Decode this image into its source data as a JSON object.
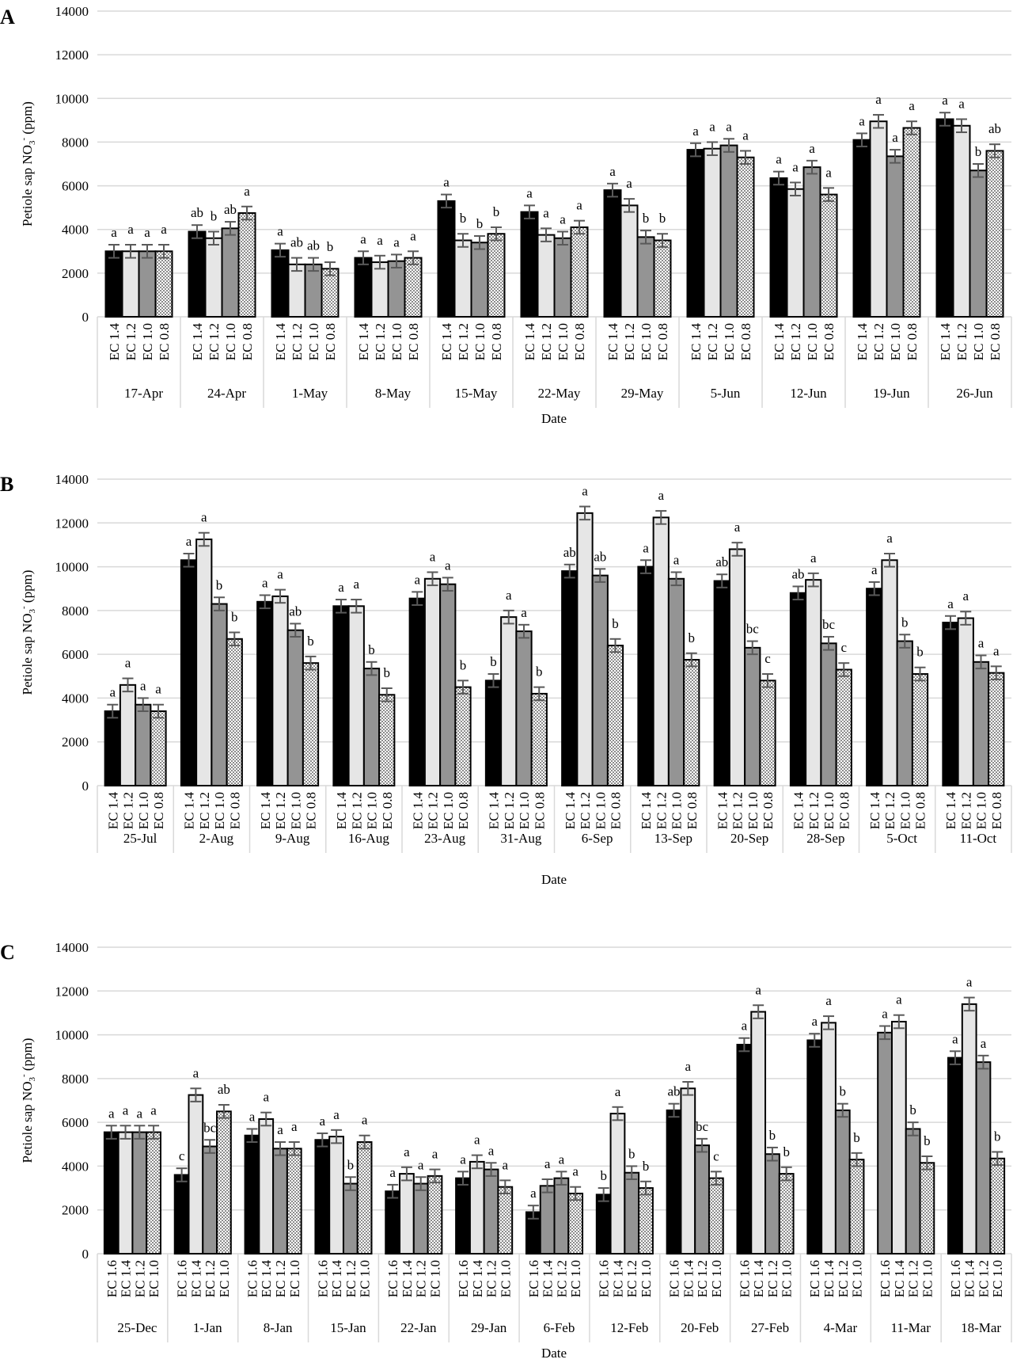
{
  "colors": {
    "EC_high": "#000000",
    "EC_mid_high": "#e6e6e6",
    "EC_mid_low": "#949494",
    "EC_low": "#ffffff",
    "hatch_dot": "#8c8c8c",
    "grid": "#d9d9d9",
    "error_bar": "#595959"
  },
  "y_axis_title": {
    "main": "Petiole sap NO",
    "sub": "3",
    "sup": "-",
    "unit": " (ppm)"
  },
  "chart_data": [
    {
      "panel": "A",
      "type": "bar",
      "xlabel": "Date",
      "ylim": [
        0,
        14000
      ],
      "yticks": [
        0,
        2000,
        4000,
        6000,
        8000,
        10000,
        12000,
        14000
      ],
      "grid": true,
      "error_approx": 300,
      "treatments": [
        "EC 1.4",
        "EC 1.2",
        "EC 1.0",
        "EC 0.8"
      ],
      "groups": [
        {
          "date": "17-Apr",
          "values": [
            3000,
            3000,
            3000,
            3000
          ],
          "letters": [
            "a",
            "a",
            "a",
            "a"
          ]
        },
        {
          "date": "24-Apr",
          "values": [
            3900,
            3600,
            4050,
            4750
          ],
          "letters": [
            "ab",
            "b",
            "ab",
            "a"
          ]
        },
        {
          "date": "1-May",
          "values": [
            3050,
            2400,
            2400,
            2200
          ],
          "letters": [
            "a",
            "ab",
            "ab",
            "b"
          ]
        },
        {
          "date": "8-May",
          "values": [
            2700,
            2500,
            2550,
            2700
          ],
          "letters": [
            "a",
            "a",
            "a",
            "a"
          ]
        },
        {
          "date": "15-May",
          "values": [
            5300,
            3500,
            3400,
            3800
          ],
          "letters": [
            "a",
            "b",
            "b",
            "b"
          ]
        },
        {
          "date": "22-May",
          "values": [
            4800,
            3750,
            3600,
            4100
          ],
          "letters": [
            "a",
            "a",
            "a",
            "a"
          ]
        },
        {
          "date": "29-May",
          "values": [
            5800,
            5100,
            3650,
            3500
          ],
          "letters": [
            "a",
            "a",
            "b",
            "b"
          ]
        },
        {
          "date": "5-Jun",
          "values": [
            7650,
            7700,
            7850,
            7300
          ],
          "letters": [
            "a",
            "a",
            "a",
            "a"
          ]
        },
        {
          "date": "12-Jun",
          "values": [
            6350,
            5850,
            6850,
            5600
          ],
          "letters": [
            "a",
            "a",
            "a",
            "a"
          ]
        },
        {
          "date": "19-Jun",
          "values": [
            8100,
            8950,
            7350,
            8650
          ],
          "letters": [
            "a",
            "a",
            "a",
            "a"
          ]
        },
        {
          "date": "26-Jun",
          "values": [
            9050,
            8750,
            6700,
            7600
          ],
          "letters": [
            "a",
            "a",
            "b",
            "ab"
          ]
        }
      ]
    },
    {
      "panel": "B",
      "type": "bar",
      "xlabel": "Date",
      "ylim": [
        0,
        14000
      ],
      "yticks": [
        0,
        2000,
        4000,
        6000,
        8000,
        10000,
        12000,
        14000
      ],
      "grid": true,
      "error_approx": 300,
      "treatments": [
        "EC 1.4",
        "EC 1.2",
        "EC 1.0",
        "EC 0.8"
      ],
      "groups": [
        {
          "date": "25-Jul",
          "values": [
            3400,
            4600,
            3700,
            3400
          ],
          "letters": [
            "a",
            "a",
            "a",
            "a"
          ]
        },
        {
          "date": "2-Aug",
          "values": [
            10300,
            11250,
            8300,
            6700
          ],
          "letters": [
            "a",
            "a",
            "b",
            "b"
          ]
        },
        {
          "date": "9-Aug",
          "values": [
            8400,
            8650,
            7100,
            5600
          ],
          "letters": [
            "a",
            "a",
            "ab",
            "b"
          ]
        },
        {
          "date": "16-Aug",
          "values": [
            8200,
            8200,
            5350,
            4150
          ],
          "letters": [
            "a",
            "a",
            "b",
            "b"
          ]
        },
        {
          "date": "23-Aug",
          "values": [
            8550,
            9450,
            9200,
            4500
          ],
          "letters": [
            "a",
            "a",
            "a",
            "b"
          ]
        },
        {
          "date": "31-Aug",
          "values": [
            4800,
            7700,
            7050,
            4200
          ],
          "letters": [
            "b",
            "a",
            "a",
            "b"
          ]
        },
        {
          "date": "6-Sep",
          "values": [
            9800,
            12450,
            9600,
            6400
          ],
          "letters": [
            "ab",
            "a",
            "ab",
            "b"
          ]
        },
        {
          "date": "13-Sep",
          "values": [
            10000,
            12250,
            9450,
            5750
          ],
          "letters": [
            "a",
            "a",
            "a",
            "b"
          ]
        },
        {
          "date": "20-Sep",
          "values": [
            9350,
            10800,
            6300,
            4800
          ],
          "letters": [
            "ab",
            "a",
            "bc",
            "c"
          ]
        },
        {
          "date": "28-Sep",
          "values": [
            8800,
            9400,
            6500,
            5300
          ],
          "letters": [
            "ab",
            "a",
            "bc",
            "c"
          ]
        },
        {
          "date": "5-Oct",
          "values": [
            9000,
            10300,
            6600,
            5100
          ],
          "letters": [
            "a",
            "a",
            "b",
            "b"
          ]
        },
        {
          "date": "11-Oct",
          "values": [
            7450,
            7650,
            5650,
            5150
          ],
          "letters": [
            "a",
            "a",
            "a",
            "a"
          ]
        }
      ]
    },
    {
      "panel": "C",
      "type": "bar",
      "xlabel": "Date",
      "ylim": [
        0,
        14000
      ],
      "yticks": [
        0,
        2000,
        4000,
        6000,
        8000,
        10000,
        12000,
        14000
      ],
      "grid": true,
      "error_approx": 300,
      "treatments": [
        "EC 1.6",
        "EC 1.4",
        "EC 1.2",
        "EC 1.0"
      ],
      "groups": [
        {
          "date": "25-Dec",
          "values": [
            5550,
            5550,
            5550,
            5550
          ],
          "letters": [
            "a",
            "a",
            "a",
            "a"
          ]
        },
        {
          "date": "1-Jan",
          "values": [
            3600,
            7250,
            4900,
            6500
          ],
          "letters": [
            "c",
            "a",
            "bc",
            "ab"
          ]
        },
        {
          "date": "8-Jan",
          "values": [
            5400,
            6150,
            4800,
            4800
          ],
          "letters": [
            "a",
            "a",
            "a",
            "a"
          ]
        },
        {
          "date": "15-Jan",
          "values": [
            5200,
            5350,
            3200,
            5100
          ],
          "letters": [
            "a",
            "a",
            "b",
            "a"
          ]
        },
        {
          "date": "22-Jan",
          "values": [
            2850,
            3650,
            3200,
            3550
          ],
          "letters": [
            "a",
            "a",
            "a",
            "a"
          ]
        },
        {
          "date": "29-Jan",
          "values": [
            3450,
            4200,
            3850,
            3050
          ],
          "letters": [
            "a",
            "a",
            "a",
            "a"
          ]
        },
        {
          "date": "6-Feb",
          "values": [
            1900,
            3100,
            3450,
            2750
          ],
          "letters": [
            "a",
            "a",
            "a",
            "a"
          ],
          "fills": [
            0,
            2,
            2,
            3
          ]
        },
        {
          "date": "12-Feb",
          "values": [
            2700,
            6400,
            3700,
            3000
          ],
          "letters": [
            "b",
            "a",
            "b",
            "b"
          ]
        },
        {
          "date": "20-Feb",
          "values": [
            6550,
            7550,
            4950,
            3450
          ],
          "letters": [
            "ab",
            "a",
            "bc",
            "c"
          ]
        },
        {
          "date": "27-Feb",
          "values": [
            9550,
            11050,
            4550,
            3650
          ],
          "letters": [
            "a",
            "a",
            "b",
            "b"
          ]
        },
        {
          "date": "4-Mar",
          "values": [
            9750,
            10550,
            6550,
            4300
          ],
          "letters": [
            "a",
            "a",
            "b",
            "b"
          ]
        },
        {
          "date": "11-Mar",
          "values": [
            10100,
            10600,
            5700,
            4150
          ],
          "letters": [
            "a",
            "a",
            "b",
            "b"
          ],
          "fills": [
            2,
            1,
            2,
            3
          ]
        },
        {
          "date": "18-Mar",
          "values": [
            8950,
            11400,
            8750,
            4350
          ],
          "letters": [
            "a",
            "a",
            "a",
            "b"
          ]
        }
      ]
    }
  ]
}
